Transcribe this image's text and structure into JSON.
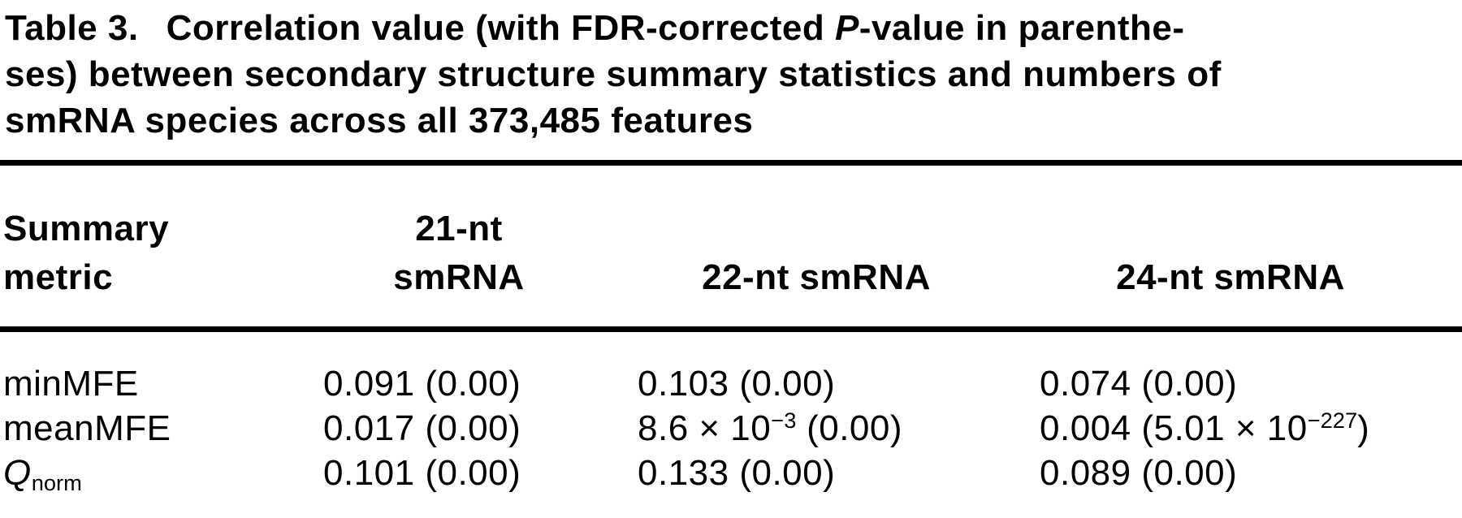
{
  "colors": {
    "text": "#000000",
    "background": "#ffffff",
    "rule": "#000000"
  },
  "caption": {
    "label": "Table 3.",
    "line1_before_italic": "Correlation value (with FDR-corrected ",
    "line1_italic": "P",
    "line1_after_italic": "-value in parenthe-",
    "line2": "ses) between secondary structure summary statistics and numbers of",
    "line3": "smRNA species across all 373,485 features"
  },
  "table": {
    "header": {
      "metric_line1": "Summary",
      "metric_line2": "metric",
      "nt21_line1": "21-nt",
      "nt21_line2": "smRNA",
      "nt22": "22-nt smRNA",
      "nt24": "24-nt smRNA"
    },
    "rows": [
      {
        "metric": "minMFE",
        "nt21": "0.091 (0.00)",
        "nt22": "0.103 (0.00)",
        "nt24": "0.074 (0.00)"
      },
      {
        "metric": "meanMFE",
        "nt21": "0.017 (0.00)",
        "nt22_pre": "8.6 × 10",
        "nt22_sup": "−3",
        "nt22_post": " (0.00)",
        "nt24_pre": "0.004 (5.01 × 10",
        "nt24_sup": "−227",
        "nt24_post": ")"
      },
      {
        "metric_base": "Q",
        "metric_sub": "norm",
        "nt21": "0.101 (0.00)",
        "nt22": "0.133 (0.00)",
        "nt24": "0.089 (0.00)"
      }
    ]
  }
}
